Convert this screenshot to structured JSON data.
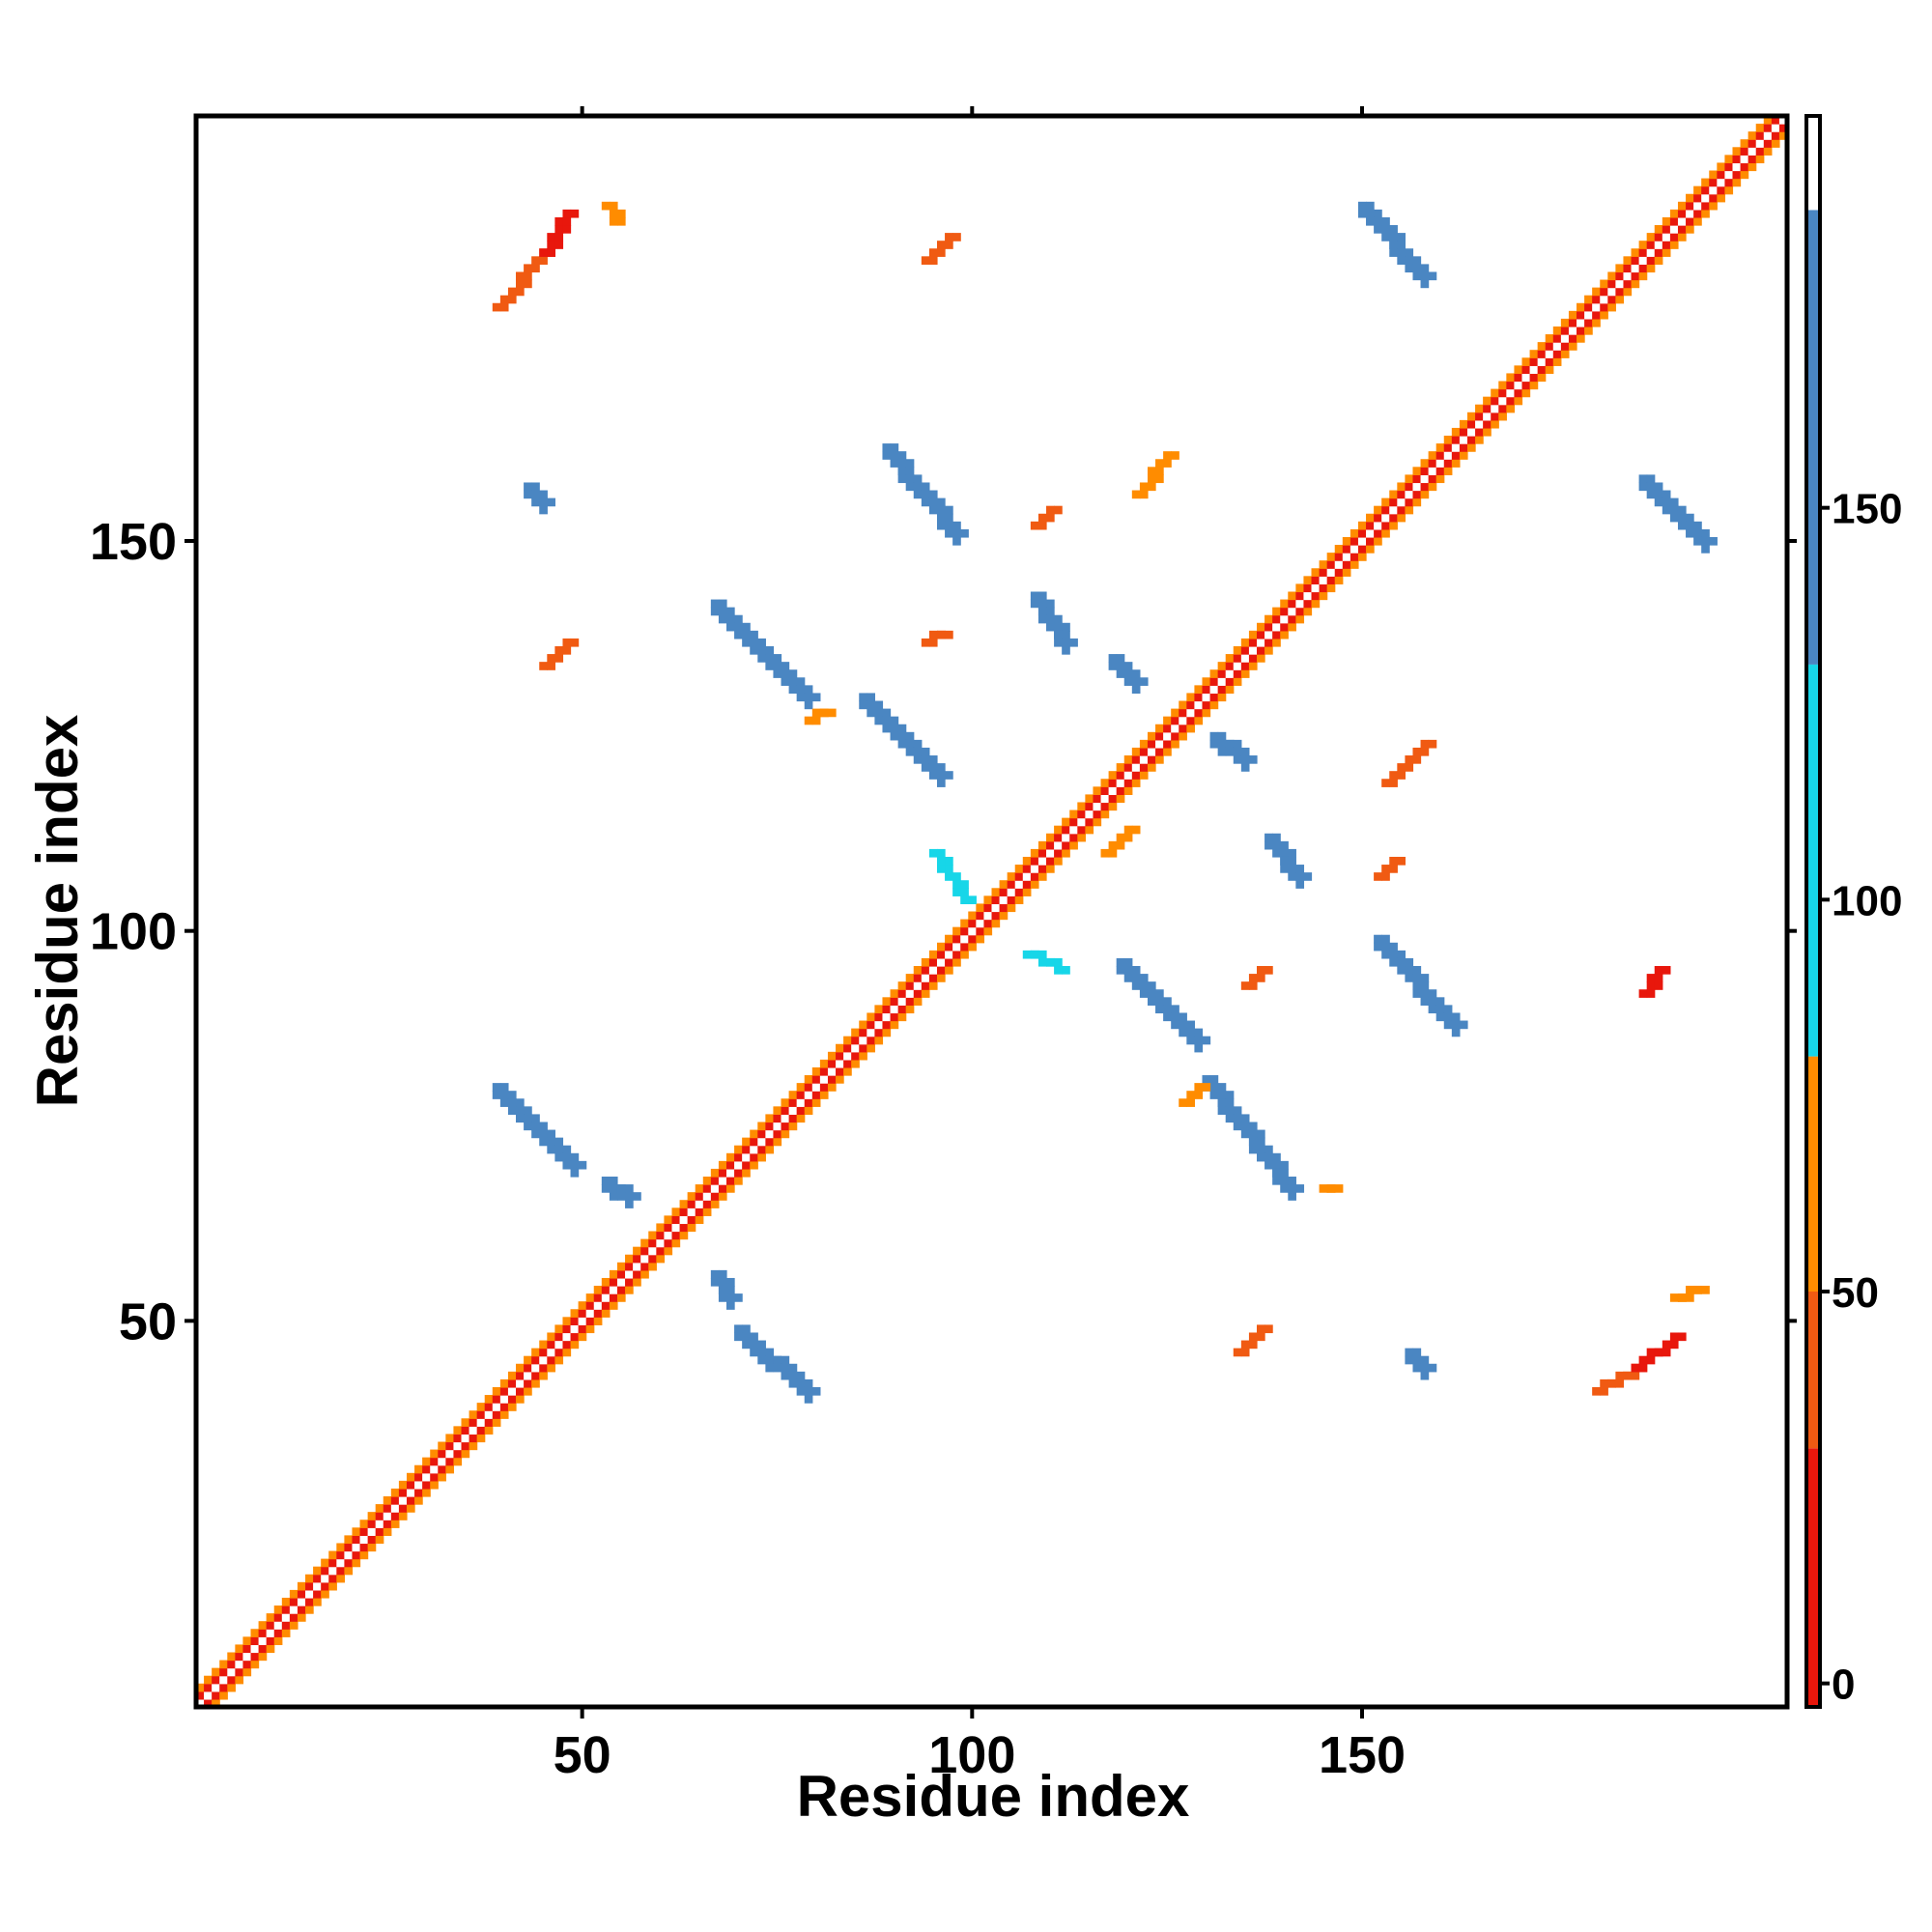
{
  "chart_data": {
    "type": "heatmap",
    "title": "",
    "xlabel": "Residue index",
    "ylabel": "Residue index",
    "xlim": [
      1,
      204
    ],
    "ylim": [
      1,
      204
    ],
    "x_ticks": [
      50,
      100,
      150
    ],
    "y_ticks": [
      50,
      100,
      150
    ],
    "grid": false,
    "colorbar": {
      "range": [
        -3,
        200
      ],
      "ticks": [
        0,
        50,
        100,
        150
      ],
      "bands": [
        {
          "from": -3,
          "to": 30,
          "color": "#e8170c"
        },
        {
          "from": 30,
          "to": 50,
          "color": "#f05a12"
        },
        {
          "from": 50,
          "to": 80,
          "color": "#ff8c00"
        },
        {
          "from": 80,
          "to": 130,
          "color": "#17d6e8"
        },
        {
          "from": 130,
          "to": 188,
          "color": "#4a86c2"
        },
        {
          "from": 188,
          "to": 200,
          "color": "#ffffff"
        }
      ]
    },
    "diagonal": {
      "start": 1,
      "end": 204
    },
    "segments": [
      {
        "x1": 39,
        "y1": 80,
        "x2": 49,
        "y2": 70,
        "value": 150
      },
      {
        "x1": 53,
        "y1": 68,
        "x2": 56,
        "y2": 66,
        "value": 150
      },
      {
        "x1": 67,
        "y1": 56,
        "x2": 69,
        "y2": 53,
        "value": 150
      },
      {
        "x1": 70,
        "y1": 49,
        "x2": 79,
        "y2": 41,
        "value": 150
      },
      {
        "x1": 67,
        "y1": 142,
        "x2": 79,
        "y2": 130,
        "value": 150
      },
      {
        "x1": 86,
        "y1": 130,
        "x2": 96,
        "y2": 120,
        "value": 150
      },
      {
        "x1": 89,
        "y1": 162,
        "x2": 98,
        "y2": 151,
        "value": 150
      },
      {
        "x1": 108,
        "y1": 143,
        "x2": 112,
        "y2": 137,
        "value": 150
      },
      {
        "x1": 119,
        "y1": 96,
        "x2": 129,
        "y2": 86,
        "value": 150
      },
      {
        "x1": 130,
        "y1": 81,
        "x2": 141,
        "y2": 67,
        "value": 150
      },
      {
        "x1": 138,
        "y1": 112,
        "x2": 142,
        "y2": 107,
        "value": 150
      },
      {
        "x1": 152,
        "y1": 99,
        "x2": 162,
        "y2": 88,
        "value": 150
      },
      {
        "x1": 150,
        "y1": 193,
        "x2": 158,
        "y2": 184,
        "value": 150
      },
      {
        "x1": 186,
        "y1": 158,
        "x2": 194,
        "y2": 150,
        "value": 150
      },
      {
        "x1": 107,
        "y1": 97,
        "x2": 111,
        "y2": 95,
        "value": 120
      },
      {
        "x1": 95,
        "y1": 110,
        "x2": 99,
        "y2": 104,
        "value": 120
      },
      {
        "x1": 118,
        "y1": 135,
        "x2": 121,
        "y2": 132,
        "value": 150
      },
      {
        "x1": 131,
        "y1": 125,
        "x2": 135,
        "y2": 122,
        "value": 150
      },
      {
        "x1": 43,
        "y1": 157,
        "x2": 45,
        "y2": 155,
        "value": 150
      },
      {
        "x1": 156,
        "y1": 46,
        "x2": 158,
        "y2": 44,
        "value": 150
      },
      {
        "x1": 39,
        "y1": 180,
        "x2": 45,
        "y2": 187,
        "value": 35
      },
      {
        "x1": 45,
        "y1": 187,
        "x2": 48,
        "y2": 192,
        "value": 20
      },
      {
        "x1": 53,
        "y1": 193,
        "x2": 54,
        "y2": 191,
        "value": 60
      },
      {
        "x1": 94,
        "y1": 186,
        "x2": 97,
        "y2": 189,
        "value": 40
      },
      {
        "x1": 121,
        "y1": 156,
        "x2": 125,
        "y2": 161,
        "value": 60
      },
      {
        "x1": 108,
        "y1": 152,
        "x2": 110,
        "y2": 154,
        "value": 45
      },
      {
        "x1": 45,
        "y1": 134,
        "x2": 48,
        "y2": 137,
        "value": 40
      },
      {
        "x1": 94,
        "y1": 137,
        "x2": 96,
        "y2": 138,
        "value": 35
      },
      {
        "x1": 79,
        "y1": 127,
        "x2": 81,
        "y2": 128,
        "value": 55
      },
      {
        "x1": 153,
        "y1": 119,
        "x2": 158,
        "y2": 124,
        "value": 45
      },
      {
        "x1": 117,
        "y1": 110,
        "x2": 120,
        "y2": 113,
        "value": 60
      },
      {
        "x1": 152,
        "y1": 107,
        "x2": 154,
        "y2": 109,
        "value": 45
      },
      {
        "x1": 135,
        "y1": 93,
        "x2": 137,
        "y2": 95,
        "value": 30
      },
      {
        "x1": 186,
        "y1": 92,
        "x2": 188,
        "y2": 95,
        "value": 20
      },
      {
        "x1": 127,
        "y1": 78,
        "x2": 129,
        "y2": 80,
        "value": 55
      },
      {
        "x1": 145,
        "y1": 67,
        "x2": 146,
        "y2": 67,
        "value": 60
      },
      {
        "x1": 134,
        "y1": 46,
        "x2": 137,
        "y2": 49,
        "value": 45
      },
      {
        "x1": 180,
        "y1": 41,
        "x2": 185,
        "y2": 44,
        "value": 45
      },
      {
        "x1": 185,
        "y1": 44,
        "x2": 190,
        "y2": 48,
        "value": 20
      },
      {
        "x1": 190,
        "y1": 53,
        "x2": 193,
        "y2": 54,
        "value": 60
      }
    ]
  }
}
